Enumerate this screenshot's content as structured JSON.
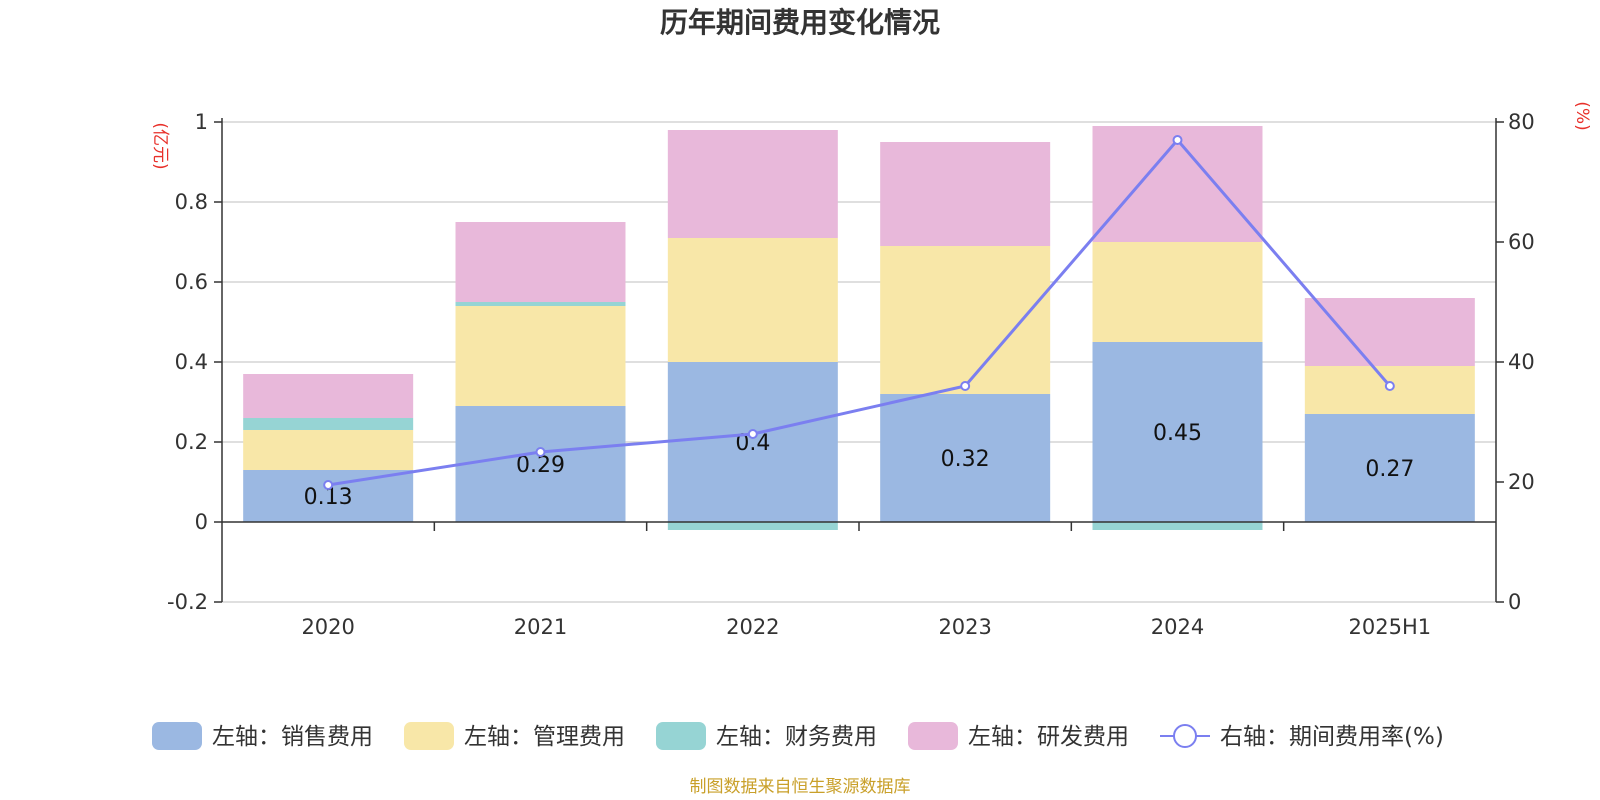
{
  "chart_data": {
    "type": "bar",
    "title": "历年期间费用变化情况",
    "left_unit": "(亿元)",
    "right_unit": "(%)",
    "categories": [
      "2020",
      "2021",
      "2022",
      "2023",
      "2024",
      "2025H1"
    ],
    "y_left": {
      "min": -0.2,
      "max": 1,
      "ticks": [
        -0.2,
        0,
        0.2,
        0.4,
        0.6,
        0.8,
        1
      ]
    },
    "y_right": {
      "min": 0,
      "max": 80,
      "ticks": [
        0,
        20,
        40,
        60,
        80
      ]
    },
    "stacked": true,
    "grid": true,
    "legend_position": "bottom",
    "series": [
      {
        "name": "左轴：销售费用",
        "axis": "left",
        "color": "#9bb8e2",
        "values": [
          0.13,
          0.29,
          0.4,
          0.32,
          0.45,
          0.27
        ],
        "labels": [
          "0.13",
          "0.29",
          "0.4",
          "0.32",
          "0.45",
          "0.27"
        ]
      },
      {
        "name": "左轴：管理费用",
        "axis": "left",
        "color": "#f8e7a8",
        "values": [
          0.1,
          0.25,
          0.31,
          0.37,
          0.25,
          0.12
        ]
      },
      {
        "name": "左轴：财务费用",
        "axis": "left",
        "color": "#96d4d4",
        "values": [
          0.03,
          0.01,
          -0.02,
          0.0,
          -0.02,
          0.0
        ]
      },
      {
        "name": "左轴：研发费用",
        "axis": "left",
        "color": "#e8b8da",
        "values": [
          0.11,
          0.2,
          0.27,
          0.26,
          0.29,
          0.17
        ]
      }
    ],
    "line_series": {
      "name": "右轴：期间费用率(%)",
      "axis": "right",
      "color": "#7b7ff0",
      "values": [
        19.5,
        25,
        28,
        36,
        77,
        36
      ]
    }
  },
  "source_note": "制图数据来自恒生聚源数据库",
  "colors": {
    "axis_label_red": "#e8302a",
    "source_gold": "#c9a02a",
    "grid": "#cccccc",
    "text": "#333333"
  }
}
